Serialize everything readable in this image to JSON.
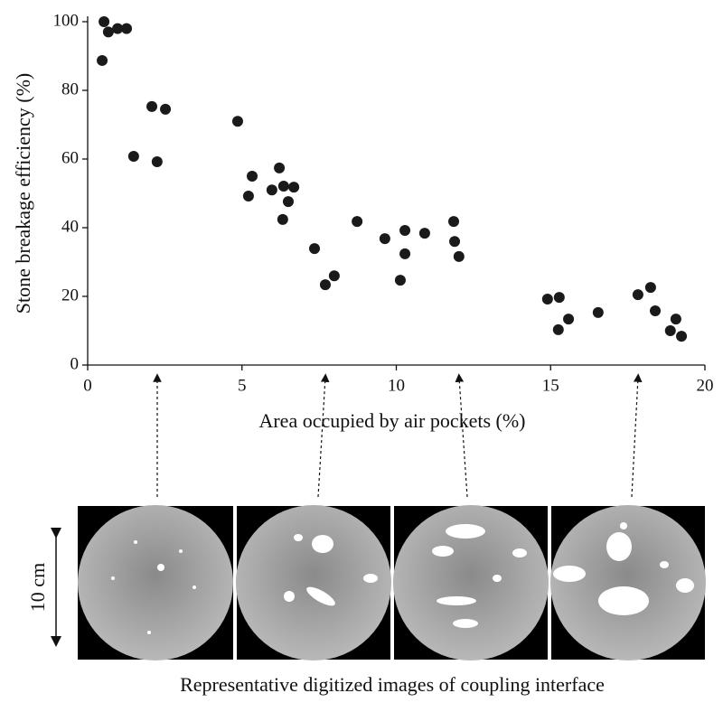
{
  "chart_data": {
    "type": "scatter",
    "xlabel": "Area occupied by air pockets (%)",
    "ylabel": "Stone breakage efficiency (%)",
    "caption": "Representative digitized images of coupling interface",
    "scale_label": "10 cm",
    "color": "#1a1a1a",
    "x": [
      0.53,
      0.47,
      0.67,
      0.97,
      1.26,
      1.49,
      2.08,
      2.52,
      2.25,
      4.86,
      5.33,
      5.21,
      6.21,
      5.97,
      6.35,
      6.68,
      6.5,
      6.32,
      7.35,
      7.99,
      7.7,
      8.73,
      9.63,
      10.28,
      10.28,
      10.92,
      10.13,
      11.86,
      11.89,
      12.03,
      14.9,
      15.28,
      15.25,
      15.58,
      16.54,
      17.83,
      18.24,
      18.39,
      19.06,
      18.88,
      19.24
    ],
    "values": [
      100,
      88.7,
      97,
      98,
      98,
      60.8,
      75.3,
      74.5,
      59.2,
      71,
      55,
      49.2,
      57.4,
      51,
      52.1,
      51.8,
      47.6,
      42.4,
      33.9,
      26,
      23.4,
      41.8,
      36.8,
      39.2,
      32.4,
      38.4,
      24.7,
      41.8,
      36,
      31.6,
      19.2,
      19.7,
      10.3,
      13.4,
      15.3,
      20.5,
      22.6,
      15.8,
      13.4,
      10,
      8.4
    ],
    "xlim": [
      0,
      20
    ],
    "xticks": [
      0,
      5,
      10,
      15,
      20
    ],
    "ylim": [
      0,
      100
    ],
    "yticks": [
      0,
      20,
      40,
      60,
      80,
      100
    ]
  }
}
